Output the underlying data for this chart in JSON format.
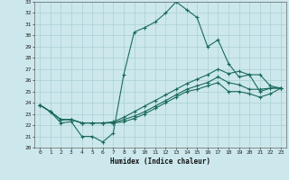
{
  "xlabel": "Humidex (Indice chaleur)",
  "ylabel": "",
  "bg_color": "#cce8ec",
  "grid_color": "#aacfd4",
  "line_color": "#1a6b5a",
  "xlim": [
    -0.5,
    23.5
  ],
  "ylim": [
    20,
    33
  ],
  "xticks": [
    0,
    1,
    2,
    3,
    4,
    5,
    6,
    7,
    8,
    9,
    10,
    11,
    12,
    13,
    14,
    15,
    16,
    17,
    18,
    19,
    20,
    21,
    22,
    23
  ],
  "yticks": [
    20,
    21,
    22,
    23,
    24,
    25,
    26,
    27,
    28,
    29,
    30,
    31,
    32,
    33
  ],
  "curve1_x": [
    0,
    1,
    2,
    3,
    4,
    5,
    6,
    7,
    8,
    9,
    10,
    11,
    12,
    13,
    14,
    15,
    16,
    17,
    18,
    19,
    20,
    21,
    22,
    23
  ],
  "curve1_y": [
    23.8,
    23.2,
    22.2,
    22.3,
    21.0,
    21.0,
    20.5,
    21.3,
    26.5,
    30.3,
    30.7,
    31.2,
    32.0,
    33.0,
    32.3,
    31.6,
    29.0,
    29.6,
    27.5,
    26.3,
    26.5,
    25.0,
    25.3,
    25.3
  ],
  "curve2_x": [
    0,
    1,
    2,
    3,
    4,
    5,
    6,
    7,
    8,
    9,
    10,
    11,
    12,
    13,
    14,
    15,
    16,
    17,
    18,
    19,
    20,
    21,
    22,
    23
  ],
  "curve2_y": [
    23.8,
    23.2,
    22.5,
    22.5,
    22.2,
    22.2,
    22.2,
    22.3,
    22.7,
    23.2,
    23.7,
    24.2,
    24.7,
    25.2,
    25.7,
    26.1,
    26.5,
    27.0,
    26.6,
    26.8,
    26.5,
    26.5,
    25.5,
    25.3
  ],
  "curve3_x": [
    0,
    1,
    2,
    3,
    4,
    5,
    6,
    7,
    8,
    9,
    10,
    11,
    12,
    13,
    14,
    15,
    16,
    17,
    18,
    19,
    20,
    21,
    22,
    23
  ],
  "curve3_y": [
    23.8,
    23.2,
    22.5,
    22.5,
    22.2,
    22.2,
    22.2,
    22.2,
    22.5,
    22.8,
    23.2,
    23.7,
    24.2,
    24.7,
    25.2,
    25.5,
    25.8,
    26.3,
    25.8,
    25.6,
    25.2,
    25.2,
    25.3,
    25.3
  ],
  "curve4_x": [
    0,
    1,
    2,
    3,
    4,
    5,
    6,
    7,
    8,
    9,
    10,
    11,
    12,
    13,
    14,
    15,
    16,
    17,
    18,
    19,
    20,
    21,
    22,
    23
  ],
  "curve4_y": [
    23.8,
    23.2,
    22.5,
    22.5,
    22.2,
    22.2,
    22.2,
    22.2,
    22.3,
    22.6,
    23.0,
    23.5,
    24.0,
    24.5,
    25.0,
    25.2,
    25.5,
    25.8,
    25.0,
    25.0,
    24.8,
    24.5,
    24.8,
    25.3
  ]
}
